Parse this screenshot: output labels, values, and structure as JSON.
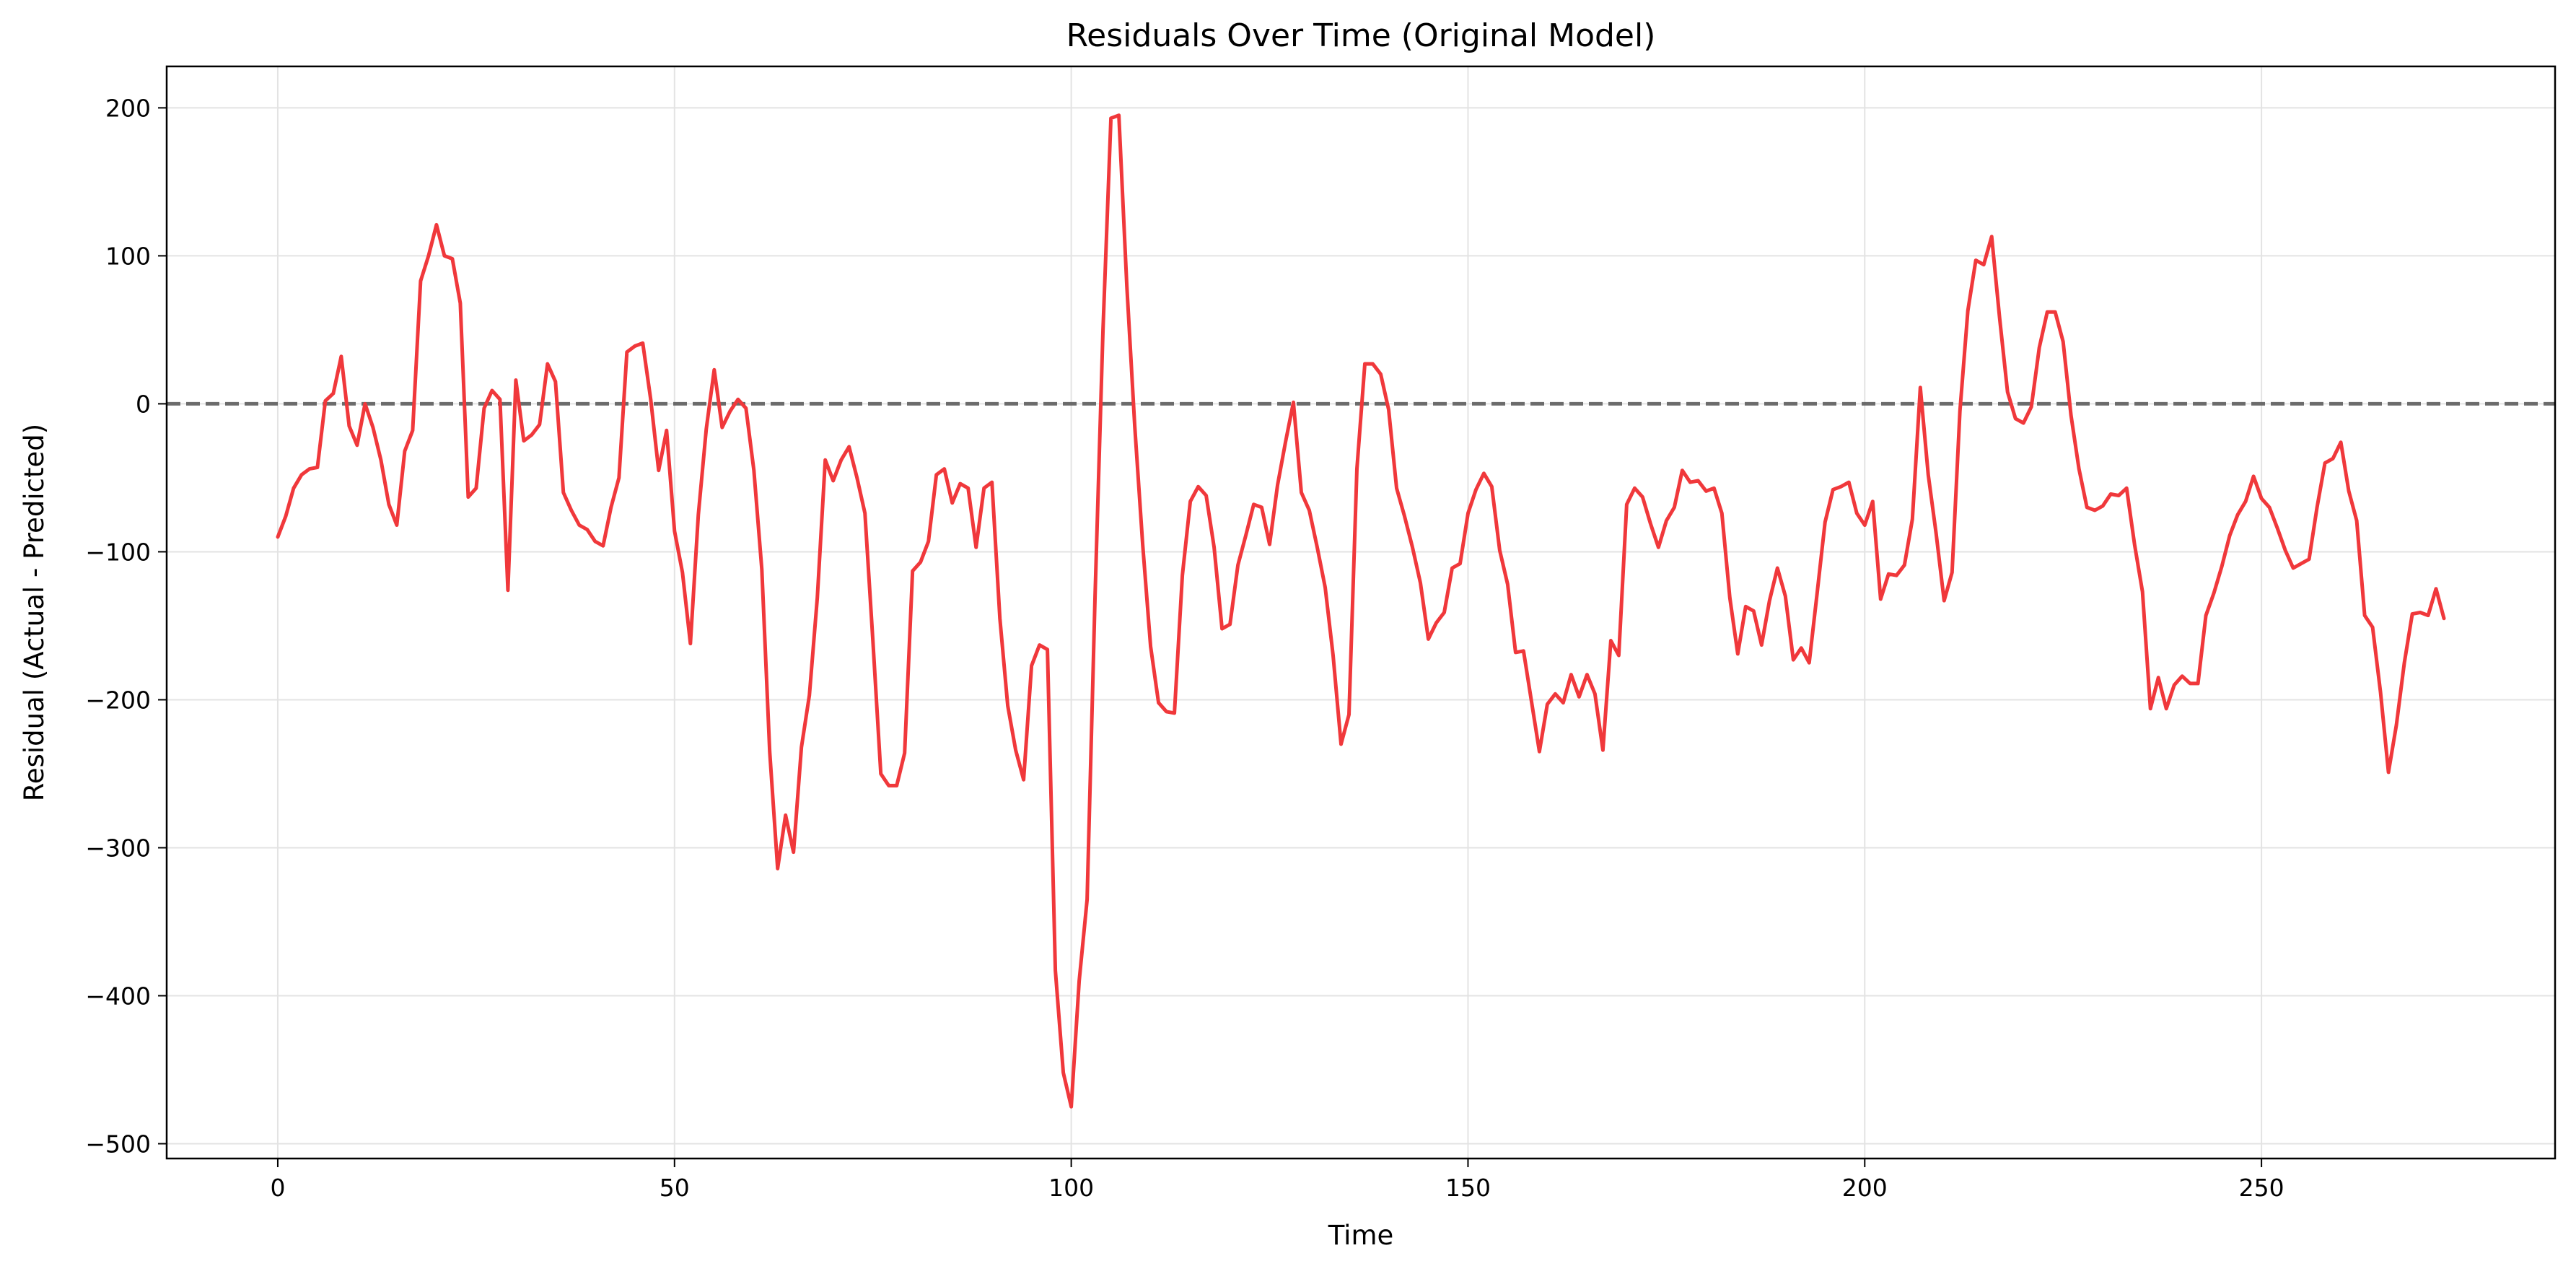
{
  "chart_data": {
    "type": "line",
    "title": "Residuals Over Time  (Original Model)",
    "xlabel": "Time",
    "ylabel": "Residual (Actual - Predicted)",
    "xlim": [
      -14,
      287
    ],
    "ylim": [
      -510,
      228
    ],
    "xticks": [
      0,
      50,
      100,
      150,
      200,
      250
    ],
    "yticks": [
      200,
      100,
      0,
      -100,
      -200,
      -300,
      -400,
      -500
    ],
    "xtick_labels": [
      "0",
      "50",
      "100",
      "150",
      "200",
      "250"
    ],
    "ytick_labels": [
      "200",
      "100",
      "0",
      "−100",
      "−200",
      "−300",
      "−400",
      "−500"
    ],
    "grid": true,
    "series": [
      {
        "color": "#f0383b",
        "style": "solid",
        "values": [
          -90,
          -76,
          -57,
          -48,
          -44,
          -43,
          2,
          7,
          32,
          -15,
          -28,
          0,
          -16,
          -38,
          -68,
          -82,
          -32,
          -18,
          83,
          100,
          121,
          100,
          98,
          68,
          -63,
          -57,
          -3,
          9,
          3,
          -126,
          16,
          -25,
          -21,
          -14,
          27,
          15,
          -60,
          -72,
          -82,
          -85,
          -93,
          -96,
          -70,
          -50,
          35,
          39,
          41,
          3,
          -45,
          -18,
          -86,
          -114,
          -162,
          -75,
          -17,
          23,
          -16,
          -5,
          3,
          -3,
          -45,
          -112,
          -235,
          -314,
          -278,
          -303,
          -232,
          -197,
          -131,
          -38,
          -52,
          -38,
          -29,
          -50,
          -74,
          -160,
          -250,
          -258,
          -258,
          -236,
          -113,
          -107,
          -93,
          -48,
          -44,
          -67,
          -54,
          -57,
          -97,
          -57,
          -53,
          -145,
          -204,
          -234,
          -254,
          -177,
          -163,
          -166,
          -383,
          -452,
          -475,
          -390,
          -335,
          -130,
          50,
          193,
          195,
          80,
          -15,
          -95,
          -164,
          -202,
          -208,
          -209,
          -116,
          -66,
          -56,
          -62,
          -97,
          -152,
          -149,
          -109,
          -89,
          -68,
          -70,
          -95,
          -55,
          -26,
          1,
          -60,
          -72,
          -97,
          -124,
          -170,
          -230,
          -210,
          -44,
          27,
          27,
          20,
          -4,
          -57,
          -76,
          -97,
          -121,
          -159,
          -148,
          -141,
          -111,
          -108,
          -74,
          -58,
          -47,
          -56,
          -99,
          -122,
          -168,
          -167,
          -201,
          -235,
          -203,
          -196,
          -202,
          -183,
          -198,
          -183,
          -196,
          -234,
          -160,
          -170,
          -68,
          -57,
          -63,
          -81,
          -97,
          -79,
          -70,
          -45,
          -53,
          -52,
          -59,
          -57,
          -74,
          -131,
          -169,
          -137,
          -140,
          -163,
          -133,
          -111,
          -130,
          -173,
          -165,
          -175,
          -128,
          -80,
          -58,
          -56,
          -53,
          -74,
          -82,
          -66,
          -132,
          -115,
          -116,
          -109,
          -78,
          11,
          -48,
          -88,
          -133,
          -114,
          -5,
          63,
          97,
          94,
          113,
          58,
          8,
          -10,
          -13,
          -2,
          38,
          62,
          62,
          42,
          -8,
          -44,
          -70,
          -72,
          -69,
          -61,
          -62,
          -57,
          -95,
          -127,
          -206,
          -185,
          -206,
          -190,
          -184,
          -189,
          -189,
          -143,
          -128,
          -110,
          -89,
          -75,
          -66,
          -49,
          -64,
          -70,
          -84,
          -99,
          -111,
          -108,
          -105,
          -70,
          -40,
          -37,
          -26,
          -59,
          -79,
          -143,
          -151,
          -195,
          -249,
          -217,
          -175,
          -142,
          -141,
          -143,
          -125,
          -145
        ]
      }
    ],
    "reference_line": {
      "y": 0,
      "color": "#555555",
      "style": "dashed"
    }
  }
}
